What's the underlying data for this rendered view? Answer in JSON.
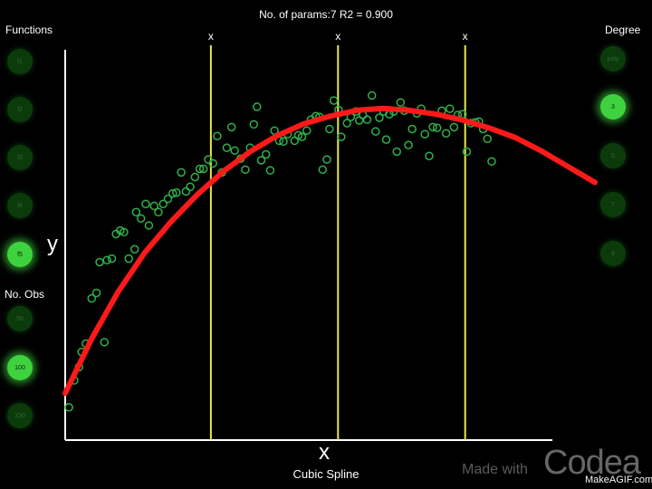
{
  "header": {
    "stats": "No. of params:7   R2 = 0.900"
  },
  "sidebar_left": {
    "functions_title": "Functions",
    "functions": [
      {
        "label": "f1",
        "active": false
      },
      {
        "label": "f2",
        "active": false
      },
      {
        "label": "f3",
        "active": false
      },
      {
        "label": "f4",
        "active": false
      },
      {
        "label": "f5",
        "active": true
      }
    ],
    "obs_title": "No. Obs",
    "obs": [
      {
        "label": "50",
        "active": false
      },
      {
        "label": "100",
        "active": true
      },
      {
        "label": "150",
        "active": false
      }
    ]
  },
  "sidebar_right": {
    "degree_title": "Degree",
    "degrees": [
      {
        "label": "poly",
        "active": false
      },
      {
        "label": "3",
        "active": true
      },
      {
        "label": "5",
        "active": false
      },
      {
        "label": "7",
        "active": false
      },
      {
        "label": "9",
        "active": false
      }
    ]
  },
  "footer": {
    "method": "Cubic Spline"
  },
  "watermark": {
    "made": "Made with",
    "brand": "Codea",
    "credit": "MakeAGIF.com"
  },
  "colors": {
    "background": "#000000",
    "points": "#2fb24a",
    "fit_curve": "#ff1a1a",
    "knot_lines": "#e8e84a",
    "axes": "#ffffff",
    "button_active": "#3fd23f",
    "button_inactive": "#0b3b0b"
  },
  "chart_data": {
    "type": "scatter",
    "xlabel": "x",
    "ylabel": "y",
    "knot_label": "x",
    "xlim": [
      0,
      100
    ],
    "ylim": [
      0,
      100
    ],
    "knots": [
      27.5,
      51.5,
      75.5
    ],
    "scatter": [
      [
        0.7,
        8.4
      ],
      [
        1.7,
        15.3
      ],
      [
        2.6,
        18.7
      ],
      [
        3.1,
        22.6
      ],
      [
        3.9,
        24.7
      ],
      [
        5.0,
        36.3
      ],
      [
        5.9,
        37.7
      ],
      [
        6.5,
        45.6
      ],
      [
        7.4,
        25.1
      ],
      [
        7.9,
        46.1
      ],
      [
        8.8,
        46.5
      ],
      [
        9.6,
        52.8
      ],
      [
        10.4,
        53.7
      ],
      [
        11.1,
        53.3
      ],
      [
        12.0,
        46.5
      ],
      [
        13.1,
        48.9
      ],
      [
        13.4,
        58.4
      ],
      [
        14.3,
        56.8
      ],
      [
        15.2,
        60.5
      ],
      [
        15.8,
        55.0
      ],
      [
        16.8,
        60.0
      ],
      [
        17.6,
        58.4
      ],
      [
        18.5,
        60.5
      ],
      [
        19.4,
        61.8
      ],
      [
        20.3,
        63.2
      ],
      [
        21.0,
        63.4
      ],
      [
        21.9,
        68.6
      ],
      [
        22.8,
        63.7
      ],
      [
        23.6,
        64.9
      ],
      [
        24.5,
        67.4
      ],
      [
        25.4,
        69.5
      ],
      [
        26.1,
        69.5
      ],
      [
        27.0,
        71.9
      ],
      [
        27.9,
        70.9
      ],
      [
        28.7,
        77.9
      ],
      [
        29.6,
        68.6
      ],
      [
        30.5,
        74.9
      ],
      [
        31.4,
        80.2
      ],
      [
        32.0,
        74.2
      ],
      [
        33.1,
        72.1
      ],
      [
        34.0,
        69.3
      ],
      [
        34.9,
        74.9
      ],
      [
        35.6,
        80.9
      ],
      [
        36.2,
        85.4
      ],
      [
        37.0,
        71.7
      ],
      [
        37.9,
        73.2
      ],
      [
        38.7,
        69.1
      ],
      [
        39.5,
        79.3
      ],
      [
        40.4,
        76.7
      ],
      [
        41.2,
        76.5
      ],
      [
        42.0,
        78.4
      ],
      [
        43.3,
        76.7
      ],
      [
        44.0,
        78.1
      ],
      [
        44.7,
        77.7
      ],
      [
        45.6,
        79.3
      ],
      [
        46.4,
        82.1
      ],
      [
        47.3,
        83.0
      ],
      [
        48.0,
        82.8
      ],
      [
        48.6,
        69.3
      ],
      [
        49.4,
        71.9
      ],
      [
        49.9,
        79.7
      ],
      [
        50.7,
        87.0
      ],
      [
        51.6,
        84.6
      ],
      [
        52.1,
        77.7
      ],
      [
        53.2,
        81.2
      ],
      [
        53.9,
        82.8
      ],
      [
        54.9,
        84.2
      ],
      [
        55.5,
        81.9
      ],
      [
        56.2,
        83.3
      ],
      [
        57.0,
        82.1
      ],
      [
        57.9,
        88.3
      ],
      [
        58.6,
        79.1
      ],
      [
        59.3,
        82.6
      ],
      [
        60.1,
        84.2
      ],
      [
        60.6,
        77.0
      ],
      [
        61.2,
        83.5
      ],
      [
        62.0,
        84.2
      ],
      [
        62.6,
        73.9
      ],
      [
        63.3,
        86.5
      ],
      [
        64.0,
        84.4
      ],
      [
        64.8,
        75.6
      ],
      [
        65.5,
        79.7
      ],
      [
        66.4,
        83.7
      ],
      [
        67.2,
        84.9
      ],
      [
        67.9,
        78.4
      ],
      [
        68.7,
        72.8
      ],
      [
        69.4,
        80.2
      ],
      [
        70.2,
        80.0
      ],
      [
        71.1,
        84.4
      ],
      [
        71.9,
        78.6
      ],
      [
        72.6,
        84.9
      ],
      [
        73.4,
        80.2
      ],
      [
        74.1,
        83.3
      ],
      [
        75.0,
        83.5
      ],
      [
        75.8,
        73.9
      ],
      [
        76.6,
        81.2
      ],
      [
        77.4,
        81.4
      ],
      [
        78.1,
        81.6
      ],
      [
        78.9,
        79.7
      ],
      [
        79.7,
        77.2
      ],
      [
        80.5,
        71.4
      ]
    ],
    "series": [
      {
        "x": [
          0,
          5,
          10,
          15,
          20,
          25,
          30,
          35,
          40,
          45,
          50,
          55,
          60,
          65,
          70,
          75,
          80,
          85,
          90,
          95,
          100
        ],
        "y": [
          12,
          26,
          38,
          48,
          56,
          63,
          69,
          74,
          78,
          81,
          83,
          84.5,
          85,
          84.5,
          83.5,
          82,
          80,
          77.5,
          74,
          70,
          66
        ]
      }
    ]
  }
}
